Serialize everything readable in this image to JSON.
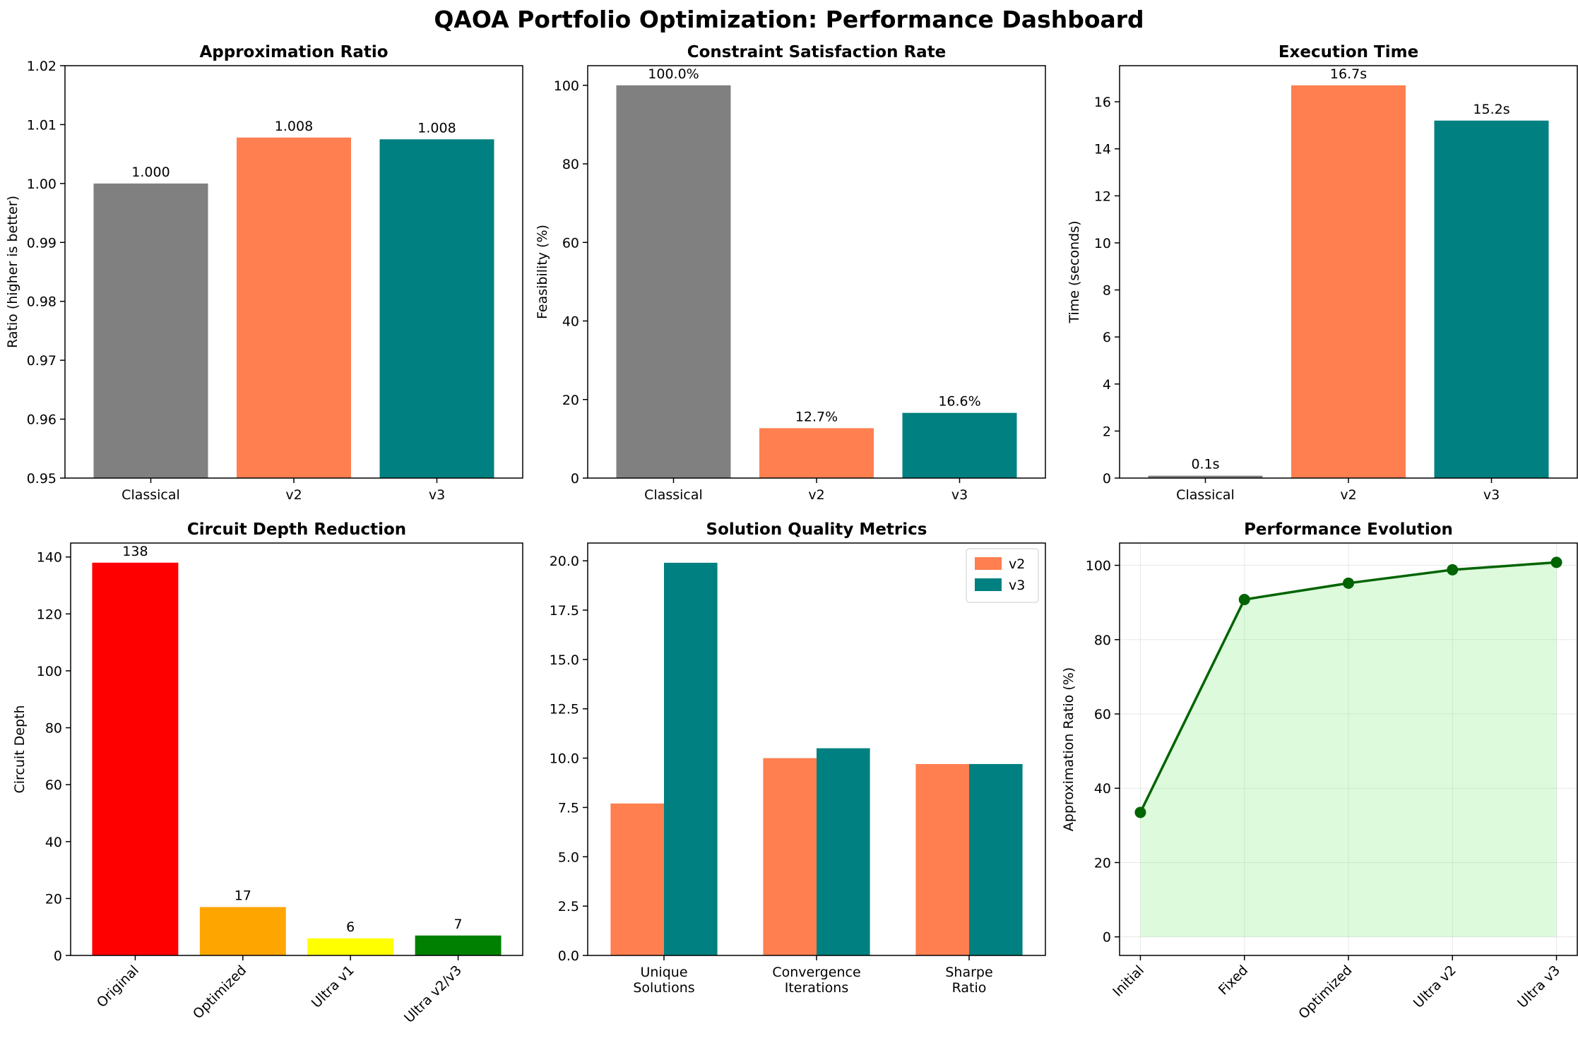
{
  "title": "QAOA Portfolio Optimization: Performance Dashboard",
  "colors": {
    "classical": "#808080",
    "v2": "#ff7f50",
    "v3": "#008080",
    "line": "#006400",
    "fill": "#90ee90"
  },
  "chart_data": [
    {
      "id": "approx",
      "type": "bar",
      "title": "Approximation Ratio",
      "xlabel": "",
      "ylabel": "Ratio (higher is better)",
      "categories": [
        "Classical",
        "v2",
        "v3"
      ],
      "values": [
        1.0,
        1.0078,
        1.0075
      ],
      "labels": [
        "1.000",
        "1.008",
        "1.008"
      ],
      "colors": [
        "#808080",
        "#ff7f50",
        "#008080"
      ],
      "ylim": [
        0.95,
        1.02
      ],
      "yticks": [
        0.95,
        0.96,
        0.97,
        0.98,
        0.99,
        1.0,
        1.01,
        1.02
      ],
      "yticklabels": [
        "0.95",
        "0.96",
        "0.97",
        "0.98",
        "0.99",
        "1.00",
        "1.01",
        "1.02"
      ]
    },
    {
      "id": "constraint",
      "type": "bar",
      "title": "Constraint Satisfaction Rate",
      "xlabel": "",
      "ylabel": "Feasibility (%)",
      "categories": [
        "Classical",
        "v2",
        "v3"
      ],
      "values": [
        100.0,
        12.7,
        16.6
      ],
      "labels": [
        "100.0%",
        "12.7%",
        "16.6%"
      ],
      "colors": [
        "#808080",
        "#ff7f50",
        "#008080"
      ],
      "ylim": [
        0,
        105
      ],
      "yticks": [
        0,
        20,
        40,
        60,
        80,
        100
      ],
      "yticklabels": [
        "0",
        "20",
        "40",
        "60",
        "80",
        "100"
      ]
    },
    {
      "id": "exectime",
      "type": "bar",
      "title": "Execution Time",
      "xlabel": "",
      "ylabel": "Time (seconds)",
      "categories": [
        "Classical",
        "v2",
        "v3"
      ],
      "values": [
        0.1,
        16.7,
        15.2
      ],
      "labels": [
        "0.1s",
        "16.7s",
        "15.2s"
      ],
      "colors": [
        "#808080",
        "#ff7f50",
        "#008080"
      ],
      "ylim": [
        0,
        17.535
      ],
      "yticks": [
        0,
        2,
        4,
        6,
        8,
        10,
        12,
        14,
        16
      ],
      "yticklabels": [
        "0",
        "2",
        "4",
        "6",
        "8",
        "10",
        "12",
        "14",
        "16"
      ]
    },
    {
      "id": "depth",
      "type": "bar",
      "title": "Circuit Depth Reduction",
      "xlabel": "",
      "ylabel": "Circuit Depth",
      "categories": [
        "Original",
        "Optimized",
        "Ultra v1",
        "Ultra v2/v3"
      ],
      "values": [
        138,
        17,
        6,
        7
      ],
      "labels": [
        "138",
        "17",
        "6",
        "7"
      ],
      "colors": [
        "#ff0000",
        "#ffa500",
        "#ffff00",
        "#008000"
      ],
      "ylim": [
        0,
        144.9
      ],
      "yticks": [
        0,
        20,
        40,
        60,
        80,
        100,
        120,
        140
      ],
      "yticklabels": [
        "0",
        "20",
        "40",
        "60",
        "80",
        "100",
        "120",
        "140"
      ],
      "rotate_xticks": true
    },
    {
      "id": "quality",
      "type": "bar",
      "title": "Solution Quality Metrics",
      "xlabel": "",
      "ylabel": "",
      "categories": [
        "Unique\nSolutions",
        "Convergence\nIterations",
        "Sharpe\nRatio"
      ],
      "series": [
        {
          "name": "v2",
          "values": [
            7.7,
            10.0,
            9.7
          ],
          "color": "#ff7f50"
        },
        {
          "name": "v3",
          "values": [
            19.9,
            10.5,
            9.7
          ],
          "color": "#008080"
        }
      ],
      "legend": "top-right",
      "ylim": [
        0,
        20.9
      ],
      "yticks": [
        0,
        2.5,
        5,
        7.5,
        10,
        12.5,
        15,
        17.5,
        20
      ],
      "yticklabels": [
        "0.0",
        "2.5",
        "5.0",
        "7.5",
        "10.0",
        "12.5",
        "15.0",
        "17.5",
        "20.0"
      ]
    },
    {
      "id": "evolution",
      "type": "line",
      "title": "Performance Evolution",
      "xlabel": "",
      "ylabel": "Approximation Ratio (%)",
      "categories": [
        "Initial",
        "Fixed",
        "Optimized",
        "Ultra v2",
        "Ultra v3"
      ],
      "values": [
        33.5,
        90.8,
        95.2,
        98.8,
        100.8
      ],
      "ylim": [
        -5,
        106
      ],
      "yticks": [
        0,
        20,
        40,
        60,
        80,
        100
      ],
      "yticklabels": [
        "0",
        "20",
        "40",
        "60",
        "80",
        "100"
      ],
      "grid": true,
      "fill_under": true,
      "rotate_xticks": true
    }
  ]
}
